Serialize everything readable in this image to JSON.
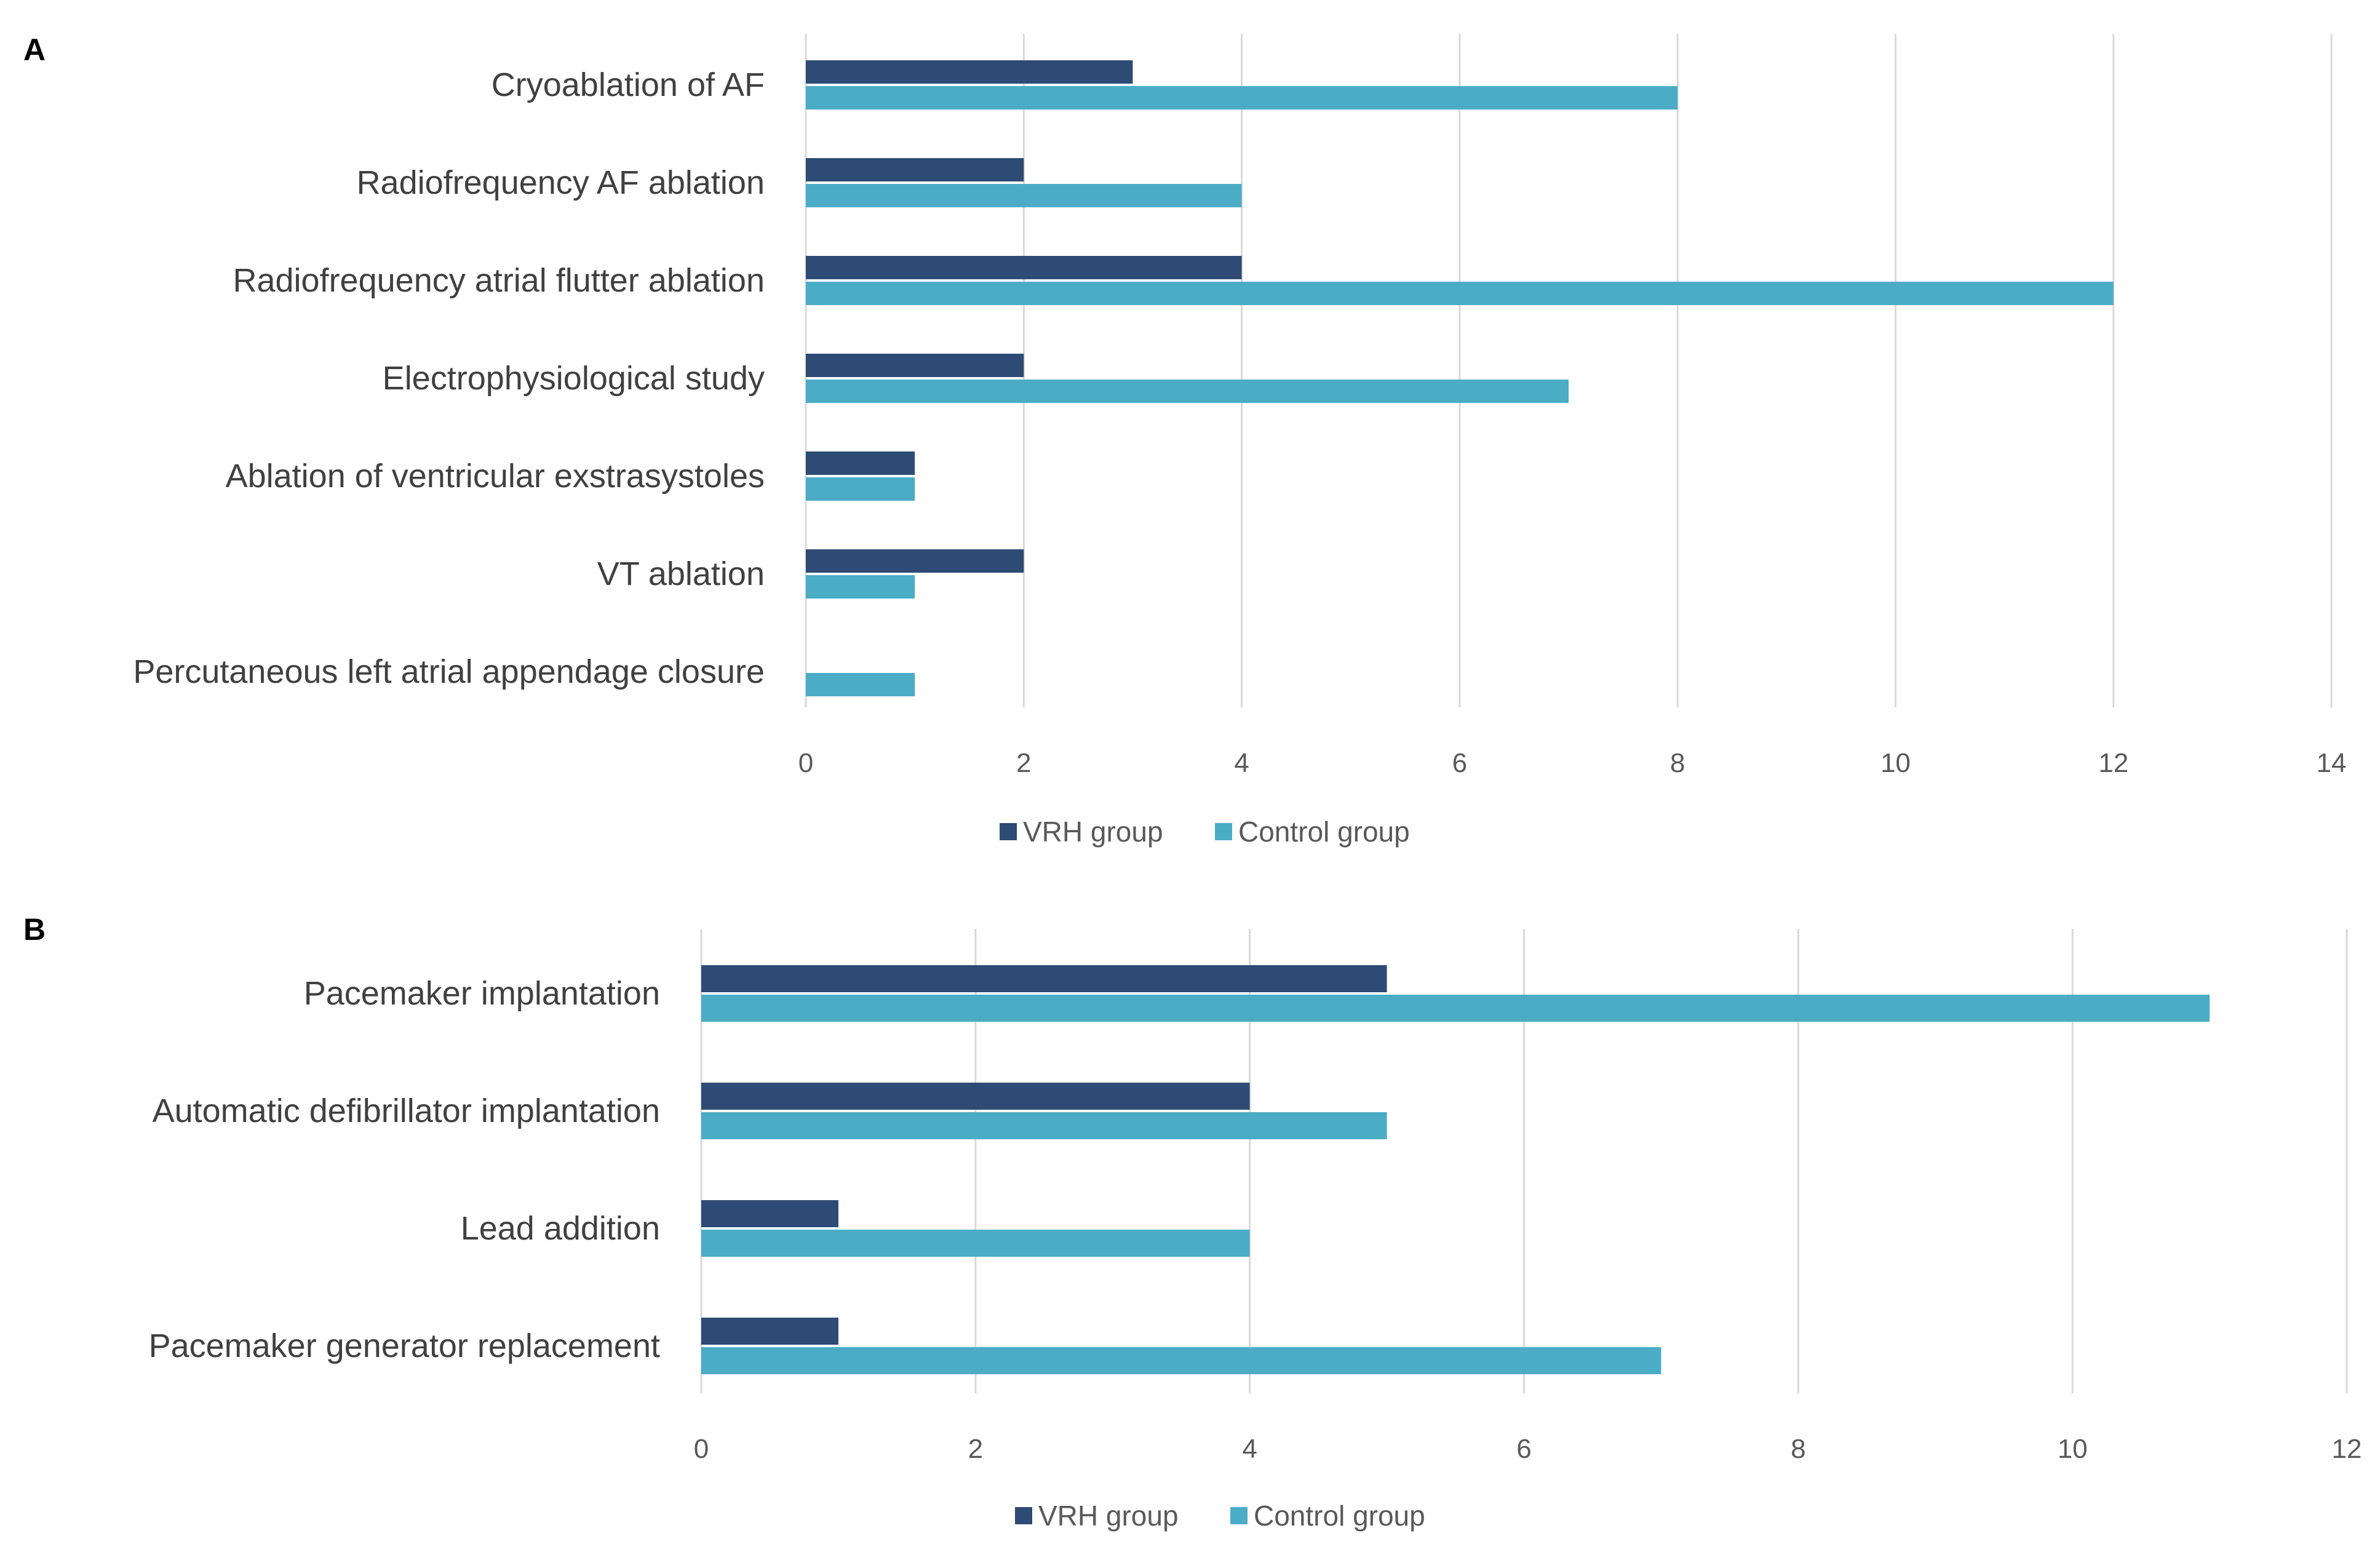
{
  "colors": {
    "vrh": "#2e4b75",
    "control": "#4bacc6"
  },
  "chart_data": [
    {
      "panel": "A",
      "type": "bar",
      "orientation": "horizontal",
      "categories": [
        "Cryoablation of AF",
        "Radiofrequency AF ablation",
        "Radiofrequency atrial flutter ablation",
        "Electrophysiological study",
        "Ablation of ventricular exstrasystoles",
        "VT ablation",
        "Percutaneous left atrial appendage closure"
      ],
      "series": [
        {
          "name": "VRH group",
          "values": [
            3,
            2,
            4,
            2,
            1,
            2,
            0
          ]
        },
        {
          "name": "Control group",
          "values": [
            8,
            4,
            12,
            7,
            1,
            1,
            1
          ]
        }
      ],
      "xlim": [
        0,
        14
      ],
      "ticks": [
        "0",
        "2",
        "4",
        "6",
        "8",
        "10",
        "12",
        "14"
      ],
      "grid": true,
      "legend_position": "bottom"
    },
    {
      "panel": "B",
      "type": "bar",
      "orientation": "horizontal",
      "categories": [
        "Pacemaker implantation",
        "Automatic defibrillator implantation",
        "Lead addition",
        "Pacemaker generator replacement"
      ],
      "series": [
        {
          "name": "VRH group",
          "values": [
            5,
            4,
            1,
            1
          ]
        },
        {
          "name": "Control group",
          "values": [
            11,
            5,
            4,
            7
          ]
        }
      ],
      "xlim": [
        0,
        12
      ],
      "ticks": [
        "0",
        "2",
        "4",
        "6",
        "8",
        "10",
        "12"
      ],
      "grid": true,
      "legend_position": "bottom"
    }
  ]
}
